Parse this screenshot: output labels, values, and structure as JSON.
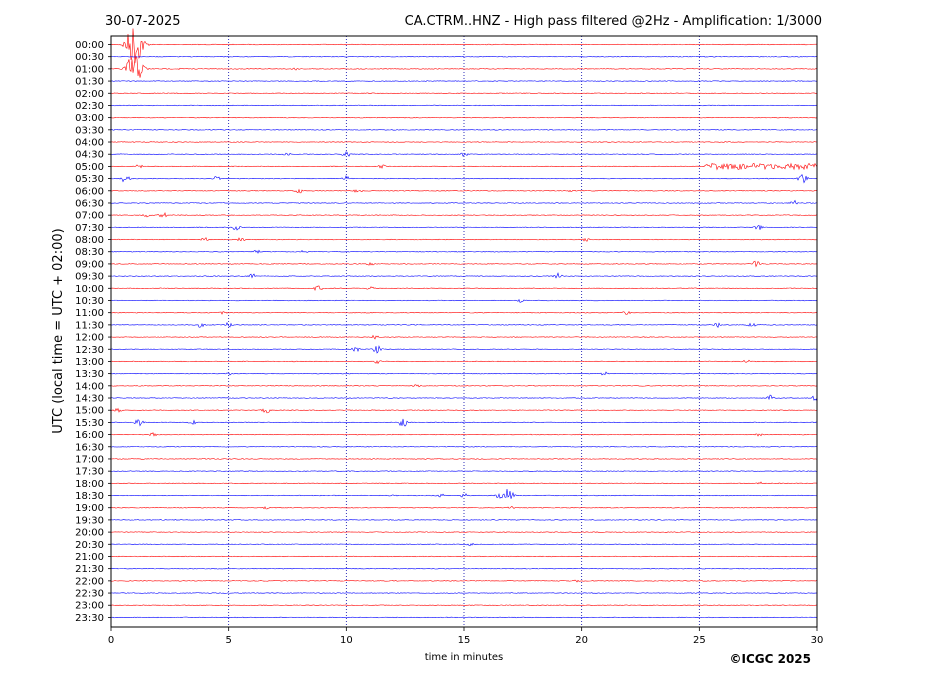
{
  "header": {
    "date": "30-07-2025",
    "title": "CA.CTRM..HNZ - High pass filtered @2Hz - Amplification: 1/3000"
  },
  "footer": {
    "copyright": "©ICGC 2025"
  },
  "chart_data": {
    "type": "line",
    "xlabel": "time in minutes",
    "ylabel": "UTC (local time = UTC + 02:00)",
    "xlim": [
      0,
      30
    ],
    "x_ticks": [
      "0",
      "5",
      "10",
      "15",
      "20",
      "25",
      "30"
    ],
    "x_tick_values": [
      0,
      5,
      10,
      15,
      20,
      25,
      30
    ],
    "vertical_grid_minutes": [
      5,
      10,
      15,
      20,
      25
    ],
    "grid_style": "dotted",
    "row_labels": [
      "00:00",
      "00:30",
      "01:00",
      "01:30",
      "02:00",
      "02:30",
      "03:00",
      "03:30",
      "04:00",
      "04:30",
      "05:00",
      "05:30",
      "06:00",
      "06:30",
      "07:00",
      "07:30",
      "08:00",
      "08:30",
      "09:00",
      "09:30",
      "10:00",
      "10:30",
      "11:00",
      "11:30",
      "12:00",
      "12:30",
      "13:00",
      "13:30",
      "14:00",
      "14:30",
      "15:00",
      "15:30",
      "16:00",
      "16:30",
      "17:00",
      "17:30",
      "18:00",
      "18:30",
      "19:00",
      "19:30",
      "20:00",
      "20:30",
      "21:00",
      "21:30",
      "22:00",
      "22:30",
      "23:00",
      "23:30"
    ],
    "colors": {
      "even_rows": "#ff0000",
      "odd_rows": "#0000ff",
      "grid": "#0000aa"
    },
    "events": [
      {
        "row": 0,
        "minute": 1.0,
        "amp": 22
      },
      {
        "row": 2,
        "minute": 1.0,
        "amp": 16
      },
      {
        "row": 2,
        "minute": 3.0,
        "amp": 1.2
      },
      {
        "row": 2,
        "minute": 7.8,
        "amp": 1.4
      },
      {
        "row": 9,
        "minute": 7.5,
        "amp": 2
      },
      {
        "row": 9,
        "minute": 10.0,
        "amp": 3
      },
      {
        "row": 9,
        "minute": 15.0,
        "amp": 2
      },
      {
        "row": 10,
        "minute": 1.2,
        "amp": 2
      },
      {
        "row": 10,
        "minute": 11.5,
        "amp": 2
      },
      {
        "row": 10,
        "minute": 27.5,
        "amp": 3.5
      },
      {
        "row": 11,
        "minute": 0.6,
        "amp": 4
      },
      {
        "row": 11,
        "minute": 4.5,
        "amp": 2.5
      },
      {
        "row": 11,
        "minute": 10.0,
        "amp": 3
      },
      {
        "row": 11,
        "minute": 29.4,
        "amp": 6
      },
      {
        "row": 12,
        "minute": 8.0,
        "amp": 2.5
      },
      {
        "row": 12,
        "minute": 10.5,
        "amp": 2.5
      },
      {
        "row": 12,
        "minute": 19.5,
        "amp": 2
      },
      {
        "row": 13,
        "minute": 29.0,
        "amp": 3
      },
      {
        "row": 14,
        "minute": 1.5,
        "amp": 2
      },
      {
        "row": 14,
        "minute": 2.2,
        "amp": 3
      },
      {
        "row": 15,
        "minute": 5.3,
        "amp": 3
      },
      {
        "row": 15,
        "minute": 27.5,
        "amp": 3
      },
      {
        "row": 16,
        "minute": 4.0,
        "amp": 2
      },
      {
        "row": 16,
        "minute": 5.5,
        "amp": 2.5
      },
      {
        "row": 16,
        "minute": 20.2,
        "amp": 2
      },
      {
        "row": 17,
        "minute": 6.2,
        "amp": 2
      },
      {
        "row": 17,
        "minute": 8.2,
        "amp": 1.5
      },
      {
        "row": 18,
        "minute": 11.0,
        "amp": 2
      },
      {
        "row": 18,
        "minute": 27.4,
        "amp": 3.5
      },
      {
        "row": 19,
        "minute": 6.0,
        "amp": 2.5
      },
      {
        "row": 19,
        "minute": 19.0,
        "amp": 3
      },
      {
        "row": 20,
        "minute": 8.8,
        "amp": 4
      },
      {
        "row": 20,
        "minute": 11.0,
        "amp": 2
      },
      {
        "row": 21,
        "minute": 17.4,
        "amp": 2
      },
      {
        "row": 22,
        "minute": 4.8,
        "amp": 2
      },
      {
        "row": 22,
        "minute": 21.9,
        "amp": 2
      },
      {
        "row": 23,
        "minute": 3.8,
        "amp": 2.5
      },
      {
        "row": 23,
        "minute": 5.0,
        "amp": 2.5
      },
      {
        "row": 23,
        "minute": 25.8,
        "amp": 2.5
      },
      {
        "row": 23,
        "minute": 27.2,
        "amp": 3
      },
      {
        "row": 24,
        "minute": 11.2,
        "amp": 2
      },
      {
        "row": 25,
        "minute": 10.4,
        "amp": 2.5
      },
      {
        "row": 25,
        "minute": 11.3,
        "amp": 4
      },
      {
        "row": 26,
        "minute": 11.3,
        "amp": 2.5
      },
      {
        "row": 26,
        "minute": 27.0,
        "amp": 2
      },
      {
        "row": 27,
        "minute": 5.0,
        "amp": 1.5
      },
      {
        "row": 27,
        "minute": 21.0,
        "amp": 2.5
      },
      {
        "row": 28,
        "minute": 13.0,
        "amp": 1.5
      },
      {
        "row": 29,
        "minute": 28.0,
        "amp": 3
      },
      {
        "row": 29,
        "minute": 30.0,
        "amp": 5
      },
      {
        "row": 30,
        "minute": 0.3,
        "amp": 2
      },
      {
        "row": 30,
        "minute": 6.6,
        "amp": 3
      },
      {
        "row": 31,
        "minute": 1.2,
        "amp": 4
      },
      {
        "row": 31,
        "minute": 3.5,
        "amp": 2
      },
      {
        "row": 31,
        "minute": 12.4,
        "amp": 5
      },
      {
        "row": 32,
        "minute": 1.8,
        "amp": 2
      },
      {
        "row": 32,
        "minute": 27.5,
        "amp": 2
      },
      {
        "row": 36,
        "minute": 27.6,
        "amp": 1.5
      },
      {
        "row": 37,
        "minute": 12.0,
        "amp": 1.5
      },
      {
        "row": 37,
        "minute": 14.0,
        "amp": 2
      },
      {
        "row": 37,
        "minute": 15.0,
        "amp": 2.5
      },
      {
        "row": 37,
        "minute": 16.5,
        "amp": 4
      },
      {
        "row": 37,
        "minute": 16.9,
        "amp": 9
      },
      {
        "row": 38,
        "minute": 6.6,
        "amp": 1.5
      },
      {
        "row": 38,
        "minute": 17.0,
        "amp": 2
      },
      {
        "row": 41,
        "minute": 15.3,
        "amp": 2
      },
      {
        "row": 44,
        "minute": 19.8,
        "amp": 1.5
      }
    ],
    "bursts": [
      {
        "row": 10,
        "from": 25.2,
        "to": 30.0,
        "amp": 3.2
      }
    ]
  }
}
